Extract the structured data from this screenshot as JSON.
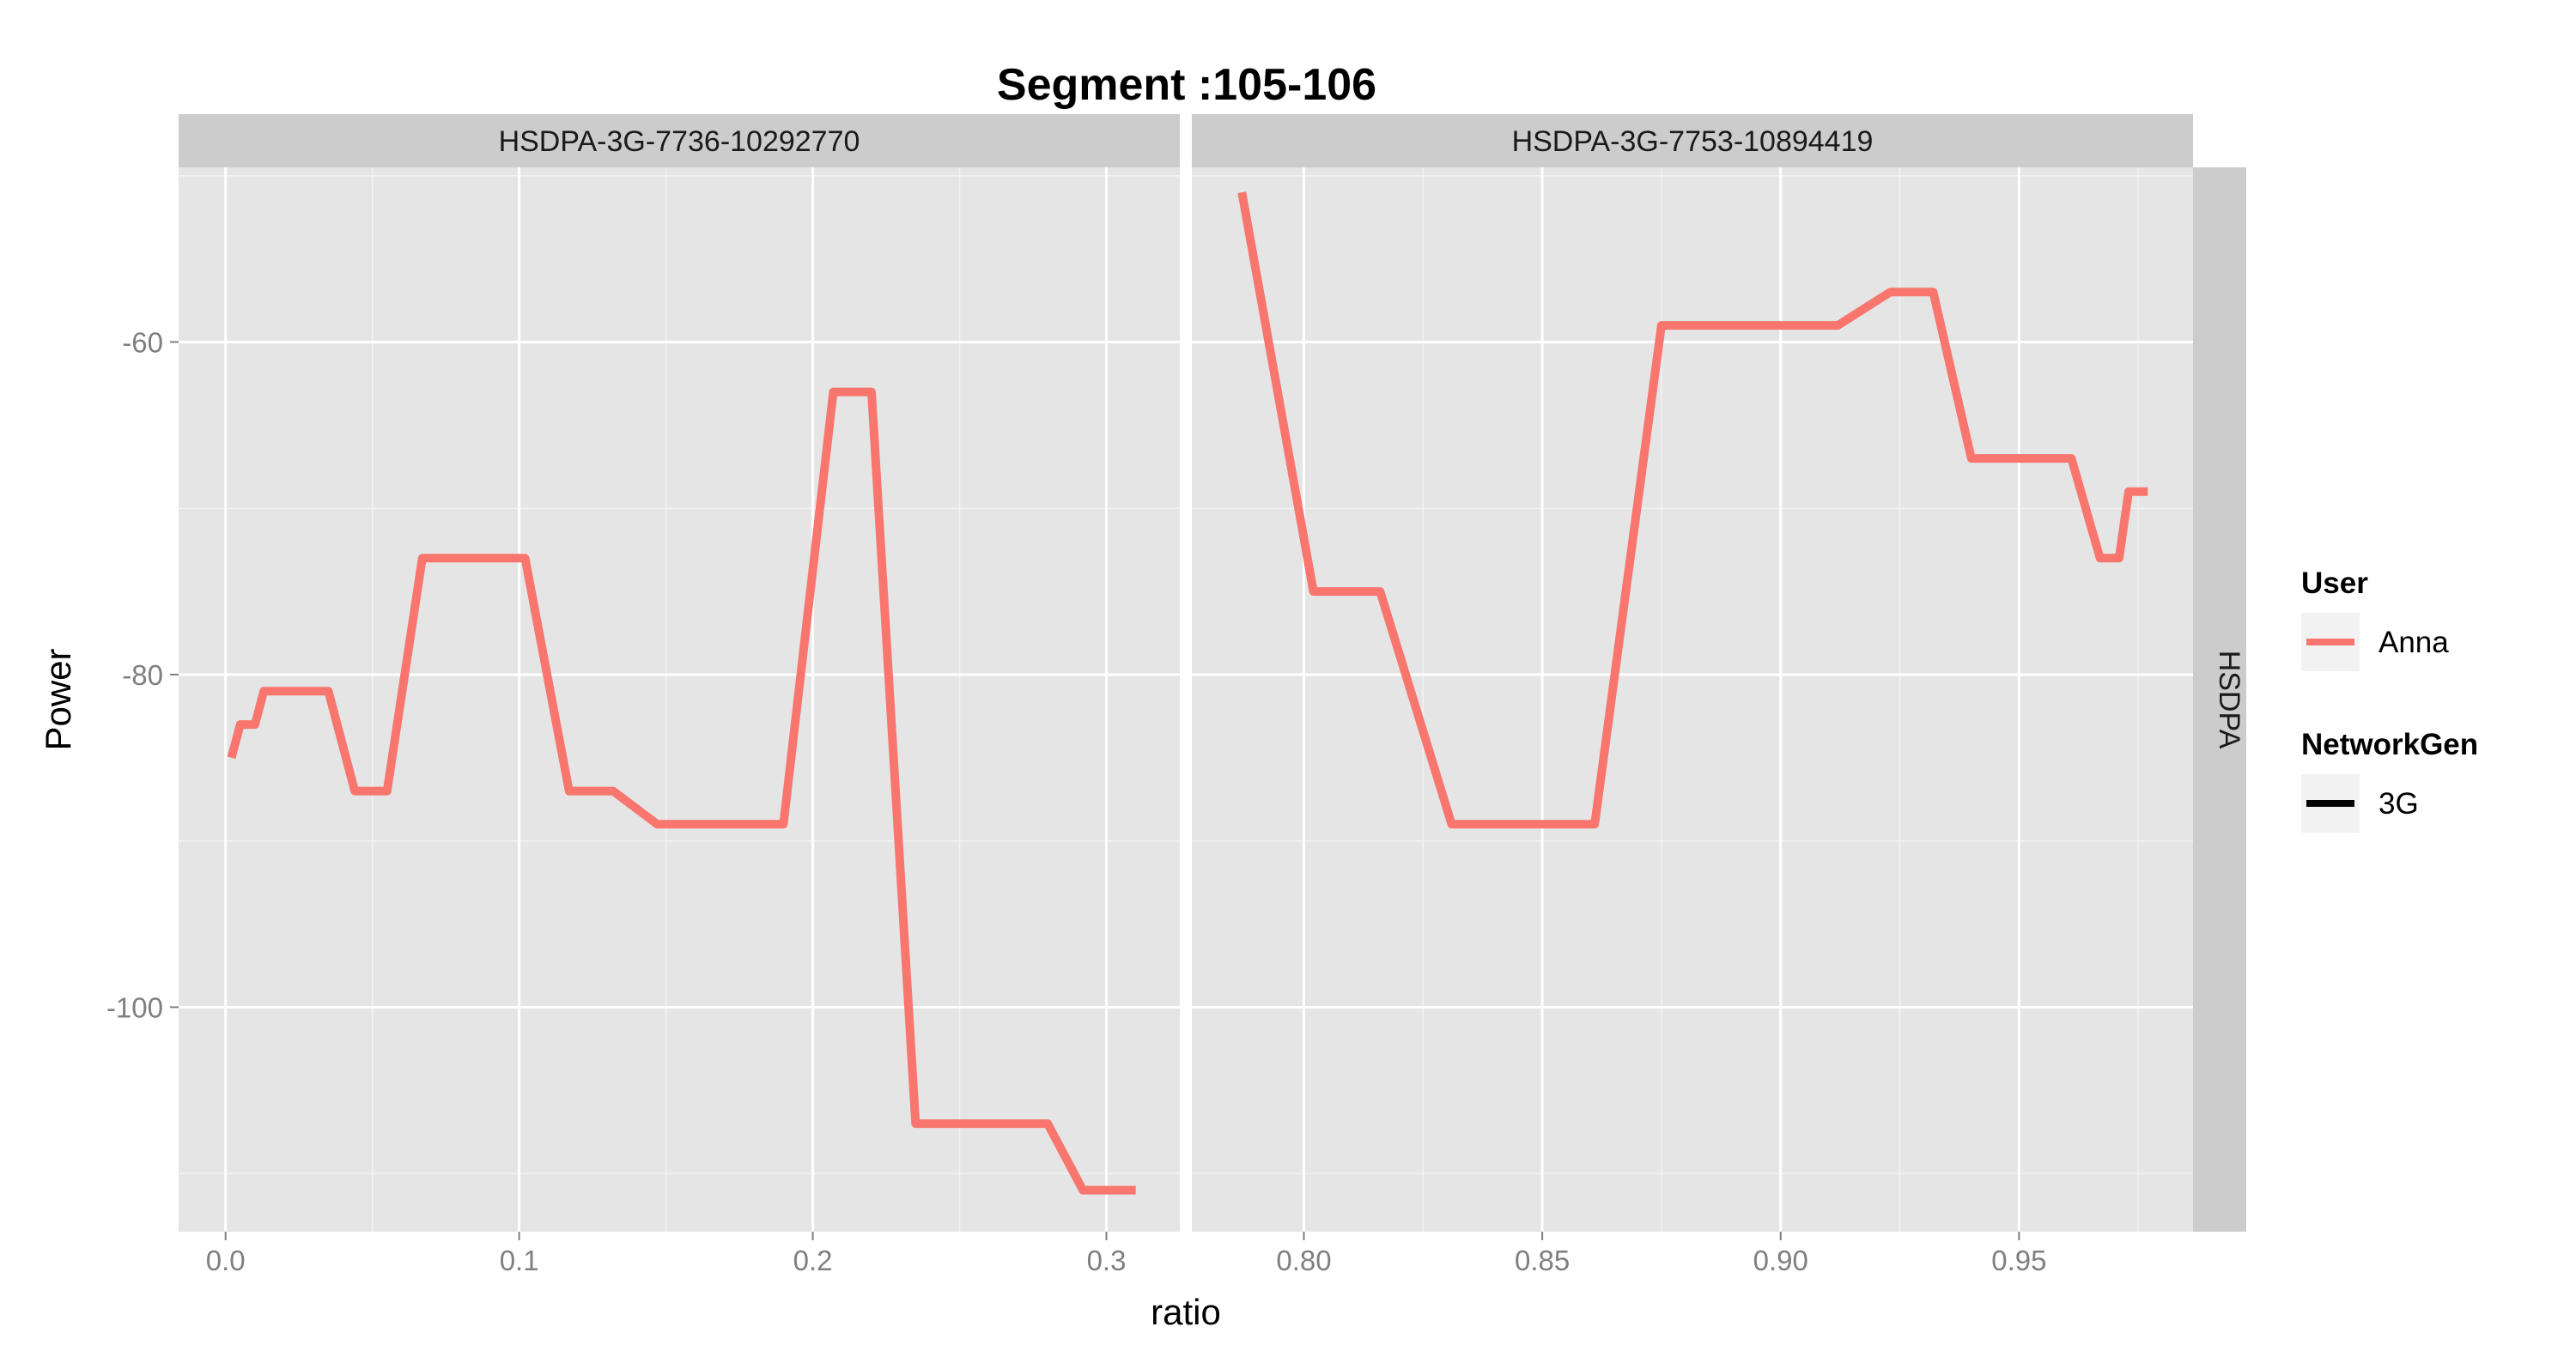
{
  "chart_data": {
    "type": "line",
    "title": "Segment :105-106",
    "xlabel": "ratio",
    "ylabel": "Power",
    "grid": true,
    "facet_row_label": "HSDPA",
    "ylim": [
      -113.5,
      -49.5
    ],
    "y_ticks": [
      -60,
      -80,
      -100
    ],
    "y_tick_labels": [
      "-60",
      "-80",
      "-100"
    ],
    "panels": [
      {
        "strip_label": "HSDPA-3G-7736-10292770",
        "xlim": [
          -0.016,
          0.325
        ],
        "x_ticks": [
          0.0,
          0.1,
          0.2,
          0.3
        ],
        "x_tick_labels": [
          "0.0",
          "0.1",
          "0.2",
          "0.3"
        ],
        "series": [
          {
            "user": "Anna",
            "network_gen": "3G",
            "color": "#F8766D",
            "x": [
              0.002,
              0.005,
              0.01,
              0.013,
              0.018,
              0.035,
              0.044,
              0.049,
              0.055,
              0.067,
              0.073,
              0.102,
              0.117,
              0.132,
              0.147,
              0.157,
              0.19,
              0.207,
              0.22,
              0.235,
              0.25,
              0.27,
              0.28,
              0.292,
              0.31
            ],
            "y": [
              -85,
              -83,
              -83,
              -81,
              -81,
              -81,
              -87,
              -87,
              -87,
              -73,
              -73,
              -73,
              -87,
              -87,
              -89,
              -89,
              -89,
              -63,
              -63,
              -107,
              -107,
              -107,
              -107,
              -111,
              -111
            ]
          }
        ]
      },
      {
        "strip_label": "HSDPA-3G-7753-10894419",
        "xlim": [
          0.7765,
          0.9865
        ],
        "x_ticks": [
          0.8,
          0.85,
          0.9,
          0.95
        ],
        "x_tick_labels": [
          "0.80",
          "0.85",
          "0.90",
          "0.95"
        ],
        "series": [
          {
            "user": "Anna",
            "network_gen": "3G",
            "color": "#F8766D",
            "x": [
              0.787,
              0.802,
              0.816,
              0.831,
              0.861,
              0.875,
              0.912,
              0.923,
              0.932,
              0.94,
              0.961,
              0.967,
              0.971,
              0.973,
              0.977
            ],
            "y": [
              -51,
              -75,
              -75,
              -89,
              -89,
              -59,
              -59,
              -57,
              -57,
              -67,
              -67,
              -73,
              -73,
              -69,
              -69
            ]
          }
        ]
      }
    ]
  },
  "legend": {
    "position": "right",
    "user_title": "User",
    "user_items": [
      {
        "label": "Anna",
        "color": "#F8766D"
      }
    ],
    "network_title": "NetworkGen",
    "network_items": [
      {
        "label": "3G",
        "color": "#000000"
      }
    ]
  }
}
